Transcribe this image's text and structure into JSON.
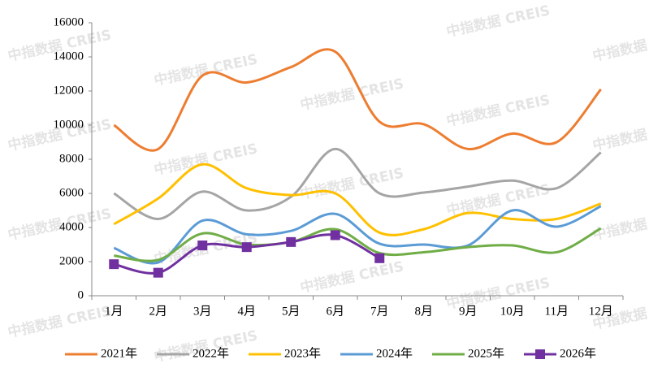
{
  "chart_data": {
    "type": "line",
    "watermark": "中指数据 CREIS",
    "categories": [
      "1月",
      "2月",
      "3月",
      "4月",
      "5月",
      "6月",
      "7月",
      "8月",
      "9月",
      "10月",
      "11月",
      "12月"
    ],
    "series": [
      {
        "name": "2021年",
        "color": "#ed7d31",
        "values": [
          10000,
          8600,
          12900,
          12500,
          13400,
          14300,
          10200,
          10050,
          8600,
          9500,
          9000,
          12100
        ]
      },
      {
        "name": "2022年",
        "color": "#a5a5a5",
        "values": [
          6000,
          4500,
          6100,
          5000,
          5800,
          8600,
          6000,
          6050,
          6400,
          6750,
          6300,
          8400
        ]
      },
      {
        "name": "2023年",
        "color": "#ffc000",
        "values": [
          4200,
          5700,
          7700,
          6300,
          5900,
          6000,
          3700,
          3900,
          4850,
          4500,
          4500,
          5400
        ]
      },
      {
        "name": "2024年",
        "color": "#5b9bd5",
        "values": [
          2800,
          1950,
          4400,
          3600,
          3800,
          4800,
          3050,
          3000,
          2950,
          5000,
          4050,
          5250
        ]
      },
      {
        "name": "2025年",
        "color": "#70ad47",
        "values": [
          2350,
          2100,
          3650,
          3000,
          3150,
          3900,
          2500,
          2550,
          2850,
          2950,
          2550,
          3950
        ]
      },
      {
        "name": "2026年",
        "color": "#7030a0",
        "marker": "square",
        "values": [
          1850,
          1350,
          2950,
          2850,
          3150,
          3550,
          2200,
          null,
          null,
          null,
          null,
          null
        ]
      }
    ],
    "ylim": [
      0,
      16000
    ],
    "yticks": [
      0,
      2000,
      4000,
      6000,
      8000,
      10000,
      12000,
      14000,
      16000
    ]
  }
}
